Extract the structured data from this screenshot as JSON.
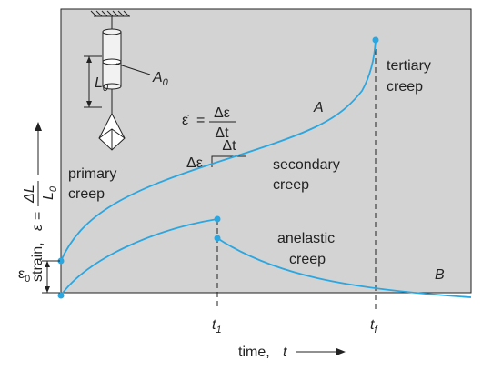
{
  "specimen": {
    "length": "L",
    "length_sub": "0",
    "area": "A",
    "area_sub": "0"
  },
  "rate": {
    "lhs": "ε̇",
    "eq": "=",
    "num": "Δε",
    "den": "Δt"
  },
  "triangle": {
    "dt": "Δt",
    "de": "Δε"
  },
  "regions": {
    "primary": [
      "primary",
      "creep"
    ],
    "secondary": [
      "secondary",
      "creep"
    ],
    "tertiary": [
      "tertiary",
      "creep"
    ],
    "anelastic": [
      "anelastic",
      "creep"
    ]
  },
  "curves": [
    "A",
    "B"
  ],
  "x_axis": {
    "label": "time,",
    "var": "t",
    "ticks": [
      {
        "base": "t",
        "sub": "1"
      },
      {
        "base": "t",
        "sub": "f"
      }
    ]
  },
  "y_axis": {
    "label": "strain,",
    "var": "ε",
    "eq": "=",
    "num": "ΔL",
    "den": "L",
    "den_sub": "0"
  },
  "initial_strain": {
    "base": "ε",
    "sub": "0"
  }
}
